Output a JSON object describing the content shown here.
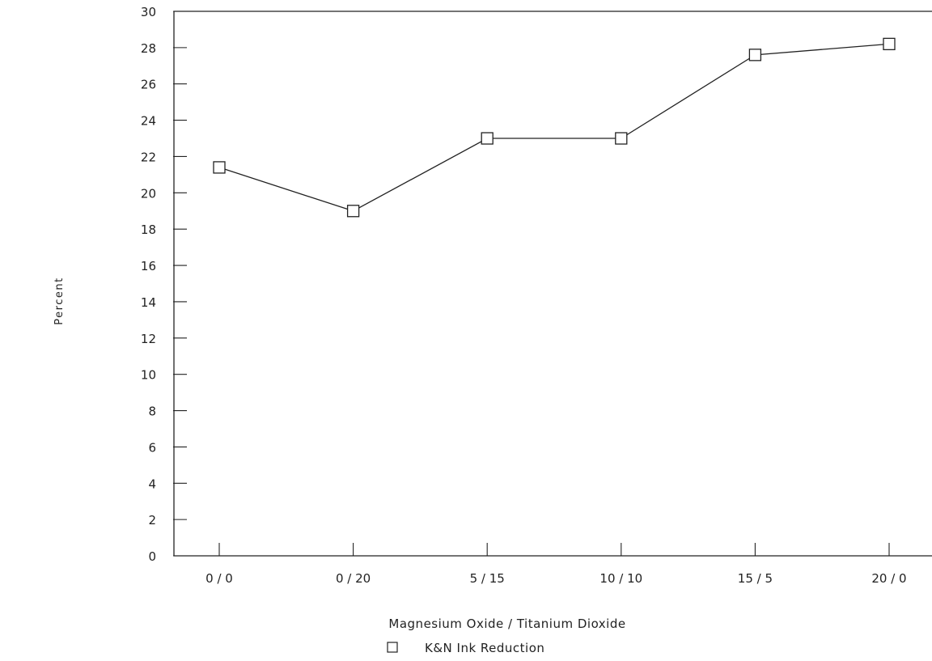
{
  "chart_data": {
    "type": "line",
    "title": "",
    "xlabel": "Magnesium Oxide / Titanium Dioxide",
    "ylabel": "Percent",
    "categories": [
      "0 / 0",
      "0 / 20",
      "5 / 15",
      "10 / 10",
      "15 / 5",
      "20 / 0"
    ],
    "series": [
      {
        "name": "K&N Ink Reduction",
        "values": [
          21.4,
          19.0,
          23.0,
          23.0,
          27.6,
          28.2
        ],
        "marker": "open-square"
      }
    ],
    "ylim": [
      0,
      30
    ],
    "yticks": [
      0,
      2,
      4,
      6,
      8,
      10,
      12,
      14,
      16,
      18,
      20,
      22,
      24,
      26,
      28,
      30
    ],
    "grid": false,
    "legend_position": "bottom-center",
    "line_color": "#222222"
  }
}
